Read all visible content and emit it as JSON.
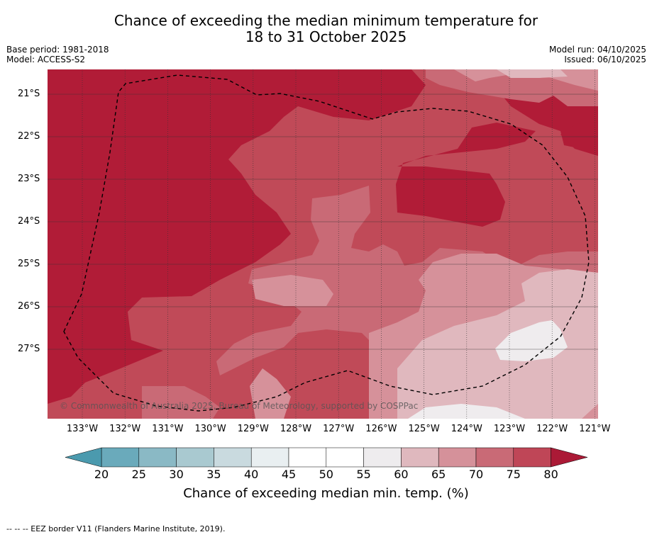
{
  "header": {
    "title_line1": "Chance of exceeding the median minimum temperature for",
    "title_line2": "18 to 31 October 2025",
    "base_period": "Base period: 1981-2018",
    "model": "Model: ACCESS-S2",
    "model_run": "Model run: 04/10/2025",
    "issued": "Issued: 06/10/2025"
  },
  "map": {
    "lat_labels": [
      "21°S",
      "22°S",
      "23°S",
      "24°S",
      "25°S",
      "26°S",
      "27°S"
    ],
    "lon_labels": [
      "133°W",
      "132°W",
      "131°W",
      "130°W",
      "129°W",
      "128°W",
      "127°W",
      "126°W",
      "125°W",
      "124°W",
      "123°W",
      "122°W",
      "121°W"
    ],
    "copyright": "© Commonwealth of Australia 2025, Bureau of Meteorology, supported by COSPPac",
    "colors": {
      "gt80": "#b11c37",
      "c75_80": "#c04a58",
      "c70_75": "#c96a76",
      "c65_70": "#d6919a",
      "c60_65": "#e0b8be",
      "c55_60": "#efecee",
      "c45_55": "#ffffff"
    }
  },
  "colorbar": {
    "ticks": [
      "20",
      "25",
      "30",
      "35",
      "40",
      "45",
      "50",
      "55",
      "60",
      "65",
      "70",
      "75",
      "80"
    ],
    "colors": [
      "#6aaabb",
      "#8ab9c5",
      "#a9c9d0",
      "#c9dadf",
      "#e9eff1",
      "#ffffff",
      "#ffffff",
      "#eeecee",
      "#dfb8be",
      "#d5919a",
      "#c96a76",
      "#bf4657"
    ],
    "low_extend_color": "#4b9aae",
    "high_extend_color": "#ab1a36",
    "title": "Chance of exceeding median min. temp. (%)"
  },
  "footnote": "--  --  -- EEZ border V11 (Flanders Marine Institute, 2019)."
}
